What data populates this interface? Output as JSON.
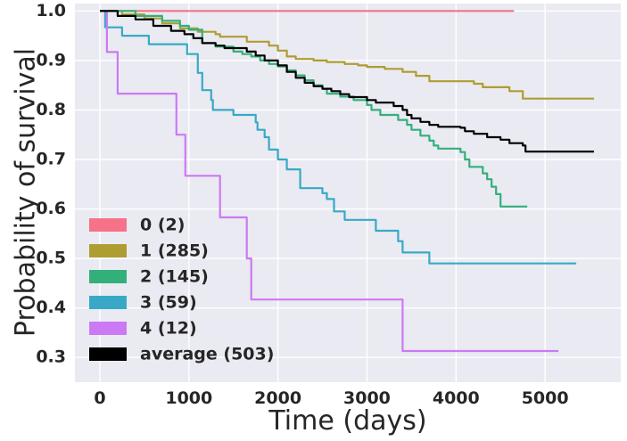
{
  "chart_data": {
    "type": "line",
    "step": true,
    "xlabel": "Time (days)",
    "ylabel": "Probability of survival",
    "xlim": [
      -280,
      5850
    ],
    "ylim": [
      0.25,
      1.015
    ],
    "xticks": [
      0,
      1000,
      2000,
      3000,
      4000,
      5000
    ],
    "yticks": [
      0.3,
      0.4,
      0.5,
      0.6,
      0.7,
      0.8,
      0.9,
      1.0
    ],
    "xtick_labels": [
      "0",
      "1000",
      "2000",
      "3000",
      "4000",
      "5000"
    ],
    "ytick_labels": [
      "0.3",
      "0.4",
      "0.5",
      "0.6",
      "0.7",
      "0.8",
      "0.9",
      "1.0"
    ],
    "grid": true,
    "background": "#eaeaf2",
    "legend_position": "lower-left",
    "series": [
      {
        "name": "0 (2)",
        "color": "#f77189",
        "points": [
          [
            0,
            1.0
          ],
          [
            4650,
            1.0
          ]
        ]
      },
      {
        "name": "1 (285)",
        "color": "#ae9d31",
        "points": [
          [
            0,
            1.0
          ],
          [
            250,
            0.993
          ],
          [
            500,
            0.985
          ],
          [
            700,
            0.975
          ],
          [
            900,
            0.965
          ],
          [
            1100,
            0.958
          ],
          [
            1300,
            0.953
          ],
          [
            1350,
            0.948
          ],
          [
            1650,
            0.938
          ],
          [
            1900,
            0.93
          ],
          [
            2000,
            0.92
          ],
          [
            2100,
            0.908
          ],
          [
            2200,
            0.903
          ],
          [
            2400,
            0.9
          ],
          [
            2550,
            0.897
          ],
          [
            2750,
            0.893
          ],
          [
            2900,
            0.89
          ],
          [
            3000,
            0.887
          ],
          [
            3200,
            0.883
          ],
          [
            3400,
            0.877
          ],
          [
            3550,
            0.869
          ],
          [
            3700,
            0.858
          ],
          [
            4100,
            0.858
          ],
          [
            4200,
            0.853
          ],
          [
            4300,
            0.846
          ],
          [
            4600,
            0.838
          ],
          [
            4750,
            0.823
          ],
          [
            5550,
            0.823
          ]
        ]
      },
      {
        "name": "2 (145)",
        "color": "#33b07a",
        "points": [
          [
            0,
            1.0
          ],
          [
            400,
            0.99
          ],
          [
            700,
            0.98
          ],
          [
            900,
            0.97
          ],
          [
            1000,
            0.962
          ],
          [
            1150,
            0.935
          ],
          [
            1300,
            0.928
          ],
          [
            1500,
            0.918
          ],
          [
            1600,
            0.913
          ],
          [
            1700,
            0.908
          ],
          [
            1800,
            0.9
          ],
          [
            1900,
            0.893
          ],
          [
            2000,
            0.888
          ],
          [
            2100,
            0.88
          ],
          [
            2200,
            0.87
          ],
          [
            2300,
            0.86
          ],
          [
            2400,
            0.85
          ],
          [
            2500,
            0.843
          ],
          [
            2550,
            0.833
          ],
          [
            2700,
            0.827
          ],
          [
            2850,
            0.82
          ],
          [
            3000,
            0.81
          ],
          [
            3050,
            0.8
          ],
          [
            3150,
            0.79
          ],
          [
            3350,
            0.78
          ],
          [
            3450,
            0.77
          ],
          [
            3500,
            0.76
          ],
          [
            3600,
            0.748
          ],
          [
            3700,
            0.738
          ],
          [
            3750,
            0.728
          ],
          [
            3800,
            0.722
          ],
          [
            4050,
            0.715
          ],
          [
            4100,
            0.7
          ],
          [
            4150,
            0.685
          ],
          [
            4300,
            0.672
          ],
          [
            4350,
            0.66
          ],
          [
            4400,
            0.645
          ],
          [
            4450,
            0.63
          ],
          [
            4500,
            0.605
          ],
          [
            4800,
            0.605
          ]
        ]
      },
      {
        "name": "3 (59)",
        "color": "#38a9c5",
        "points": [
          [
            0,
            1.0
          ],
          [
            60,
            0.967
          ],
          [
            250,
            0.95
          ],
          [
            550,
            0.933
          ],
          [
            950,
            0.933
          ],
          [
            980,
            0.913
          ],
          [
            1080,
            0.913
          ],
          [
            1100,
            0.875
          ],
          [
            1150,
            0.84
          ],
          [
            1250,
            0.82
          ],
          [
            1270,
            0.8
          ],
          [
            1370,
            0.8
          ],
          [
            1500,
            0.79
          ],
          [
            1750,
            0.775
          ],
          [
            1770,
            0.76
          ],
          [
            1850,
            0.745
          ],
          [
            1900,
            0.72
          ],
          [
            2000,
            0.7
          ],
          [
            2100,
            0.68
          ],
          [
            2250,
            0.642
          ],
          [
            2350,
            0.642
          ],
          [
            2500,
            0.632
          ],
          [
            2550,
            0.62
          ],
          [
            2620,
            0.62
          ],
          [
            2630,
            0.595
          ],
          [
            2750,
            0.578
          ],
          [
            3100,
            0.556
          ],
          [
            3350,
            0.535
          ],
          [
            3400,
            0.512
          ],
          [
            3600,
            0.512
          ],
          [
            3700,
            0.49
          ],
          [
            5350,
            0.49
          ]
        ]
      },
      {
        "name": "4 (12)",
        "color": "#cc79f4",
        "points": [
          [
            0,
            1.0
          ],
          [
            80,
            0.917
          ],
          [
            200,
            0.833
          ],
          [
            860,
            0.75
          ],
          [
            960,
            0.667
          ],
          [
            1350,
            0.583
          ],
          [
            1650,
            0.5
          ],
          [
            1700,
            0.417
          ],
          [
            1760,
            0.417
          ],
          [
            3400,
            0.313
          ],
          [
            5150,
            0.313
          ]
        ]
      },
      {
        "name": "average (503)",
        "color": "#000000",
        "points": [
          [
            0,
            1.0
          ],
          [
            200,
            0.99
          ],
          [
            400,
            0.983
          ],
          [
            600,
            0.97
          ],
          [
            800,
            0.96
          ],
          [
            950,
            0.953
          ],
          [
            1050,
            0.945
          ],
          [
            1150,
            0.935
          ],
          [
            1300,
            0.93
          ],
          [
            1400,
            0.925
          ],
          [
            1650,
            0.918
          ],
          [
            1750,
            0.91
          ],
          [
            1850,
            0.9
          ],
          [
            2000,
            0.89
          ],
          [
            2100,
            0.877
          ],
          [
            2200,
            0.865
          ],
          [
            2300,
            0.855
          ],
          [
            2400,
            0.848
          ],
          [
            2500,
            0.843
          ],
          [
            2600,
            0.838
          ],
          [
            2700,
            0.832
          ],
          [
            2800,
            0.826
          ],
          [
            3000,
            0.82
          ],
          [
            3100,
            0.815
          ],
          [
            3300,
            0.808
          ],
          [
            3400,
            0.8
          ],
          [
            3450,
            0.79
          ],
          [
            3500,
            0.783
          ],
          [
            3600,
            0.776
          ],
          [
            3700,
            0.77
          ],
          [
            3800,
            0.766
          ],
          [
            4050,
            0.764
          ],
          [
            4100,
            0.757
          ],
          [
            4200,
            0.752
          ],
          [
            4350,
            0.745
          ],
          [
            4500,
            0.74
          ],
          [
            4600,
            0.733
          ],
          [
            4750,
            0.728
          ],
          [
            4780,
            0.716
          ],
          [
            5550,
            0.716
          ]
        ]
      }
    ]
  }
}
